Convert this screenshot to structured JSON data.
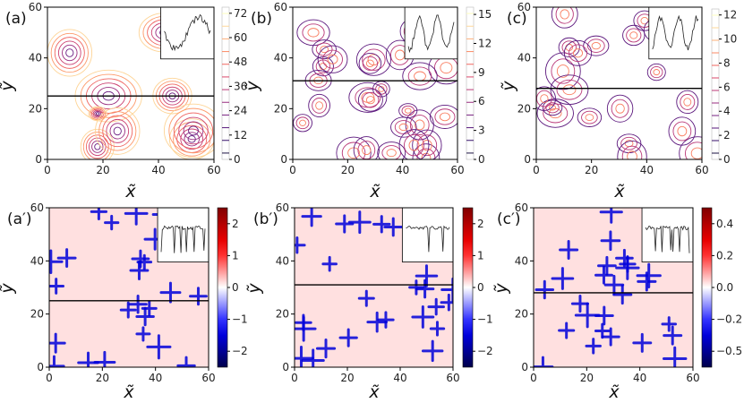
{
  "figure": {
    "description_free": true
  },
  "chart_data": [
    {
      "type": "heatmap",
      "panel": "(a)",
      "style": "contour",
      "xlabel": "x̃",
      "ylabel": "ỹ",
      "xlim": [
        0,
        60
      ],
      "ylim": [
        0,
        60
      ],
      "xticks": [
        "0",
        "20",
        "40",
        "60"
      ],
      "yticks": [
        "0",
        "20",
        "40",
        "60"
      ],
      "colorbar_ticks": [
        "0",
        "12",
        "24",
        "36",
        "48",
        "60",
        "72"
      ],
      "colorbar_range": [
        0,
        75
      ],
      "cmap": "magma",
      "cut_line_y": 25,
      "inset": "profile along cut line"
    },
    {
      "type": "heatmap",
      "panel": "(b)",
      "style": "contour",
      "xlabel": "x̃",
      "ylabel": "ỹ",
      "xlim": [
        0,
        60
      ],
      "ylim": [
        0,
        60
      ],
      "xticks": [
        "0",
        "20",
        "40",
        "60"
      ],
      "yticks": [
        "0",
        "20",
        "40",
        "60"
      ],
      "colorbar_ticks": [
        "0",
        "3",
        "6",
        "9",
        "12",
        "15"
      ],
      "colorbar_range": [
        0,
        15.5
      ],
      "cmap": "magma",
      "cut_line_y": 31,
      "inset": "profile along cut line"
    },
    {
      "type": "heatmap",
      "panel": "(c)",
      "style": "contour",
      "xlabel": "x̃",
      "ylabel": "ỹ",
      "xlim": [
        0,
        60
      ],
      "ylim": [
        0,
        60
      ],
      "xticks": [
        "0",
        "20",
        "40",
        "60"
      ],
      "yticks": [
        "0",
        "20",
        "40",
        "60"
      ],
      "colorbar_ticks": [
        "0",
        "2",
        "4",
        "6",
        "8",
        "10",
        "12"
      ],
      "colorbar_range": [
        0,
        13
      ],
      "cmap": "magma",
      "cut_line_y": 28,
      "inset": "profile along cut line"
    },
    {
      "type": "heatmap",
      "panel": "(a′)",
      "style": "filled",
      "xlabel": "x̃",
      "ylabel": "ỹ",
      "xlim": [
        0,
        60
      ],
      "ylim": [
        0,
        60
      ],
      "xticks": [
        "0",
        "20",
        "40",
        "60"
      ],
      "yticks": [
        "0",
        "20",
        "40",
        "60"
      ],
      "colorbar_ticks": [
        "2",
        "1",
        "0",
        "−1",
        "−2"
      ],
      "colorbar_range": [
        -2.3,
        2.3
      ],
      "cmap": "seismic",
      "cut_line_y": 25,
      "inset": "profile along cut line"
    },
    {
      "type": "heatmap",
      "panel": "(b′)",
      "style": "filled",
      "xlabel": "x̃",
      "ylabel": "ỹ",
      "xlim": [
        0,
        60
      ],
      "ylim": [
        0,
        60
      ],
      "xticks": [
        "0",
        "20",
        "40",
        "60"
      ],
      "yticks": [
        "0",
        "20",
        "40",
        "60"
      ],
      "colorbar_ticks": [
        "2",
        "1",
        "0",
        "−1",
        "−2"
      ],
      "colorbar_range": [
        -2.3,
        2.3
      ],
      "cmap": "seismic",
      "cut_line_y": 31,
      "inset": "profile along cut line"
    },
    {
      "type": "heatmap",
      "panel": "(c′)",
      "style": "filled",
      "xlabel": "x̃",
      "ylabel": "ỹ",
      "xlim": [
        0,
        60
      ],
      "ylim": [
        0,
        60
      ],
      "xticks": [
        "0",
        "20",
        "40",
        "60"
      ],
      "yticks": [
        "0",
        "20",
        "40",
        "60"
      ],
      "colorbar_ticks": [
        "0.4",
        "0.2",
        "0.0",
        "−0.2",
        "−0.5"
      ],
      "colorbar_range": [
        -0.6,
        0.6
      ],
      "cmap": "seismic",
      "cut_line_y": 28,
      "inset": "profile along cut line"
    }
  ]
}
